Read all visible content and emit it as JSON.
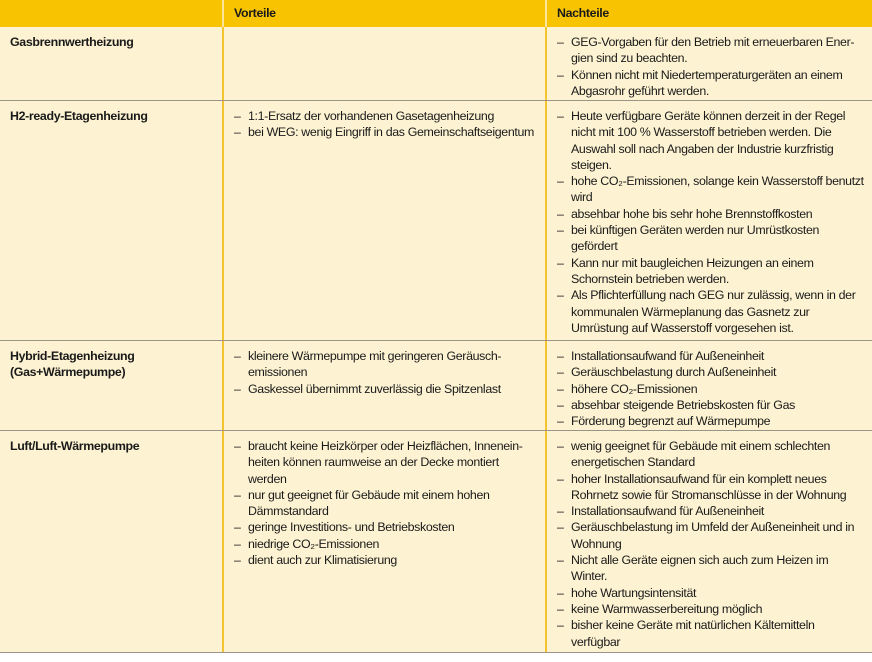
{
  "header": {
    "col1": "",
    "col2": "Vorteile",
    "col3": "Nachteile"
  },
  "colors": {
    "header": "#f8c300",
    "body": "#fdf3d2"
  },
  "rows": [
    {
      "name": "Gasbrennwertheizung",
      "vorteile": [],
      "nachteile": [
        "GEG-Vorgaben für den Betrieb mit erneuerbaren Ener­gien sind zu beachten.",
        "Können nicht mit Niedertemperaturgeräten an einem Abgasrohr geführt werden."
      ]
    },
    {
      "name": "H2-ready-Etagenheizung",
      "vorteile": [
        "1:1-Ersatz der vorhandenen Gasetagenheizung",
        "bei WEG: wenig Eingriff in das Gemeinschaftseigentum"
      ],
      "nachteile": [
        "Heute verfügbare Geräte können derzeit in der Regel nicht mit 100 % Wasserstoff betrieben werden. Die Auswahl soll nach Angaben der Industrie kurzfristig steigen.",
        "hohe CO₂-Emissionen, solange kein Wasserstoff benutzt wird",
        "absehbar hohe bis sehr hohe Brennstoffkosten",
        "bei künftigen Geräten werden nur Umrüstkosten gefördert",
        "Kann nur mit baugleichen Heizungen an einem Schornstein betrieben werden.",
        "Als Pflichterfüllung nach GEG nur zulässig, wenn in der kommunalen Wärmeplanung das Gasnetz zur Umrüstung auf Wasserstoff vorgesehen ist."
      ]
    },
    {
      "name": "Hybrid-Etagenheizung (Gas+Wärmepumpe)",
      "vorteile": [
        "kleinere Wärmepumpe mit geringeren Geräusch­emissionen",
        "Gaskessel übernimmt zuverlässig die Spitzenlast"
      ],
      "nachteile": [
        "Installationsaufwand für Außeneinheit",
        "Geräuschbelastung durch Außeneinheit",
        "höhere CO₂-Emissionen",
        "absehbar steigende Betriebskosten für Gas",
        "Förderung begrenzt auf Wärmepumpe"
      ]
    },
    {
      "name": "Luft/Luft-Wärmepumpe",
      "vorteile": [
        "braucht keine Heizkörper oder Heizflächen, Innenein­heiten können raumweise an der Decke montiert werden",
        "nur gut geeignet für Gebäude mit einem hohen Dämmstandard",
        "geringe Investitions- und Betriebskosten",
        "niedrige CO₂-Emissionen",
        "dient auch zur Klimatisierung"
      ],
      "nachteile": [
        "wenig geeignet für Gebäude mit einem schlechten energetischen Standard",
        "hoher Installationsaufwand für ein komplett neues Rohrnetz sowie für Stromanschlüsse in der Wohnung",
        "Installationsaufwand für Außeneinheit",
        "Geräuschbelastung im Umfeld der Außeneinheit und in Wohnung",
        "Nicht alle Geräte eignen sich auch zum Heizen im Winter.",
        "hohe Wartungsintensität",
        "keine Warmwasserbereitung möglich",
        "bisher keine Geräte mit natürlichen Kältemitteln verfügbar"
      ]
    }
  ]
}
